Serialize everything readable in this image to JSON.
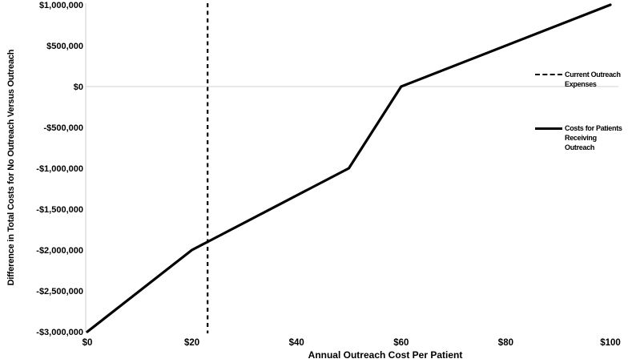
{
  "chart_data": {
    "type": "line",
    "title": "",
    "xlabel": "Annual Outreach Cost Per Patient",
    "ylabel": "Difference in Total Costs for No Outreach Versus Outreach",
    "xlim": [
      0,
      100
    ],
    "ylim": [
      -3000000,
      1000000
    ],
    "grid": "zero-line-only",
    "legend_position": "right",
    "x_ticks": [
      {
        "label": "$0",
        "value": 0
      },
      {
        "label": "$20",
        "value": 20
      },
      {
        "label": "$40",
        "value": 40
      },
      {
        "label": "$60",
        "value": 60
      },
      {
        "label": "$80",
        "value": 80
      },
      {
        "label": "$100",
        "value": 100
      }
    ],
    "y_ticks": [
      {
        "label": "$1,000,000",
        "value": 1000000
      },
      {
        "label": "$500,000",
        "value": 500000
      },
      {
        "label": "$0",
        "value": 0
      },
      {
        "label": "-$500,000",
        "value": -500000
      },
      {
        "label": "-$1,000,000",
        "value": -1000000
      },
      {
        "label": "-$1,500,000",
        "value": -1500000
      },
      {
        "label": "-$2,000,000",
        "value": -2000000
      },
      {
        "label": "-$2,500,000",
        "value": -2500000
      },
      {
        "label": "-$3,000,000",
        "value": -3000000
      }
    ],
    "series": [
      {
        "name": "Costs for Patients Receiving Outreach",
        "style": "solid",
        "color": "#000000",
        "points": [
          [
            0,
            -3000000
          ],
          [
            20,
            -2000000
          ],
          [
            50,
            -1000000
          ],
          [
            60,
            0
          ],
          [
            100,
            1000000
          ]
        ]
      }
    ],
    "vline": {
      "name": "Current Outreach Expenses",
      "style": "dashed",
      "color": "#000000",
      "x": 23
    }
  },
  "legend": {
    "items": [
      {
        "name": "Current Outreach Expenses",
        "style": "dashed",
        "lines": [
          "Current Outreach",
          "Expenses"
        ]
      },
      {
        "name": "Costs for Patients Receiving Outreach",
        "style": "solid",
        "lines": [
          "Costs for Patients",
          "Receiving",
          "Outreach"
        ]
      }
    ]
  },
  "colors": {
    "line": "#000000",
    "gridline": "#d9d9d9",
    "background": "#ffffff",
    "text": "#000000"
  }
}
